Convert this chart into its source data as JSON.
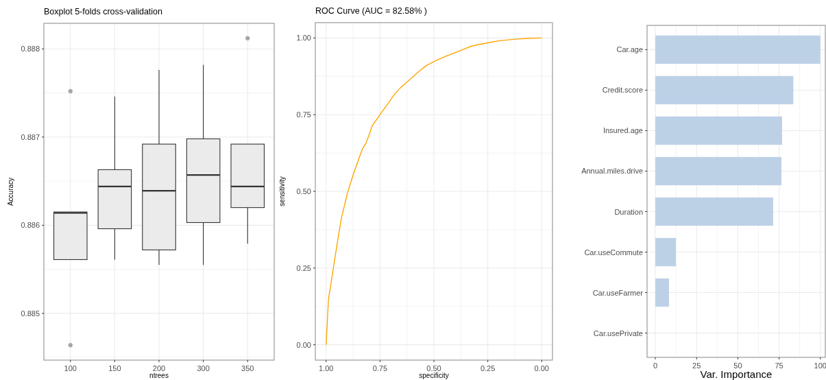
{
  "chart_data": [
    {
      "type": "box",
      "title": "Boxplot 5-folds cross-validation",
      "xlabel": "ntrees",
      "ylabel": "Accuracy",
      "categories": [
        "100",
        "150",
        "200",
        "300",
        "350"
      ],
      "color": "#ebebeb",
      "ylim": [
        0.88447,
        0.88829
      ],
      "yticks": [
        0.885,
        0.886,
        0.887,
        0.888
      ],
      "grid": true,
      "boxes": [
        {
          "low": 0.88561,
          "q1": 0.88561,
          "median": 0.88614,
          "q3": 0.88615,
          "high": 0.88615,
          "outliers": [
            0.88752,
            0.88464
          ]
        },
        {
          "low": 0.88561,
          "q1": 0.88596,
          "median": 0.88644,
          "q3": 0.88663,
          "high": 0.88746
        },
        {
          "low": 0.88555,
          "q1": 0.88572,
          "median": 0.88639,
          "q3": 0.88692,
          "high": 0.88776
        },
        {
          "low": 0.88555,
          "q1": 0.88603,
          "median": 0.88657,
          "q3": 0.88698,
          "high": 0.88782
        },
        {
          "low": 0.88579,
          "q1": 0.8862,
          "median": 0.88644,
          "q3": 0.88692,
          "high": 0.88692,
          "outliers": [
            0.88812
          ]
        }
      ]
    },
    {
      "type": "line",
      "title": "ROC Curve (AUC = 82.58% )",
      "xlabel": "specificity",
      "ylabel": "sensitivity",
      "xlim": [
        1.05,
        -0.05
      ],
      "ylim": [
        -0.05,
        1.05
      ],
      "xticks": [
        {
          "value": 1,
          "label": "1.00"
        },
        {
          "value": 0.75,
          "label": "0.75"
        },
        {
          "value": 0.5,
          "label": "0.50"
        },
        {
          "value": 0.25,
          "label": "0.25"
        },
        {
          "value": 0,
          "label": "0.00"
        }
      ],
      "yticks": [
        {
          "value": 0,
          "label": "0.00"
        },
        {
          "value": 0.25,
          "label": "0.25"
        },
        {
          "value": 0.5,
          "label": "0.50"
        },
        {
          "value": 0.75,
          "label": "0.75"
        },
        {
          "value": 1,
          "label": "1.00"
        }
      ],
      "grid": true,
      "x": [
        1.0,
        0.989,
        0.953,
        0.929,
        0.9,
        0.875,
        0.832,
        0.815,
        0.798,
        0.787,
        0.75,
        0.707,
        0.679,
        0.653,
        0.619,
        0.571,
        0.535,
        0.491,
        0.446,
        0.389,
        0.323,
        0.251,
        0.196,
        0.123,
        0.054,
        0.0
      ],
      "series": [
        {
          "color": "#ffa500",
          "values": [
            0.0,
            0.148,
            0.31,
            0.413,
            0.497,
            0.553,
            0.638,
            0.657,
            0.689,
            0.713,
            0.75,
            0.792,
            0.82,
            0.839,
            0.86,
            0.89,
            0.91,
            0.926,
            0.94,
            0.956,
            0.974,
            0.984,
            0.991,
            0.996,
            0.999,
            1.0
          ]
        }
      ]
    },
    {
      "type": "bar",
      "orientation": "horizontal",
      "xlabel": "Var. Importance",
      "categories": [
        "Car.age",
        "Credit.score",
        "Insured.age",
        "Annual.miles.drive",
        "Duration",
        "Car.useCommute",
        "Car.useFarmer",
        "Car.usePrivate"
      ],
      "values": [
        100,
        83.6,
        76.8,
        76.4,
        71.4,
        12.5,
        8.3,
        0
      ],
      "color": "#bdd1e6",
      "xlim": [
        -5,
        103
      ],
      "xticks": [
        0,
        25,
        50,
        75,
        100
      ],
      "grid": true
    }
  ]
}
